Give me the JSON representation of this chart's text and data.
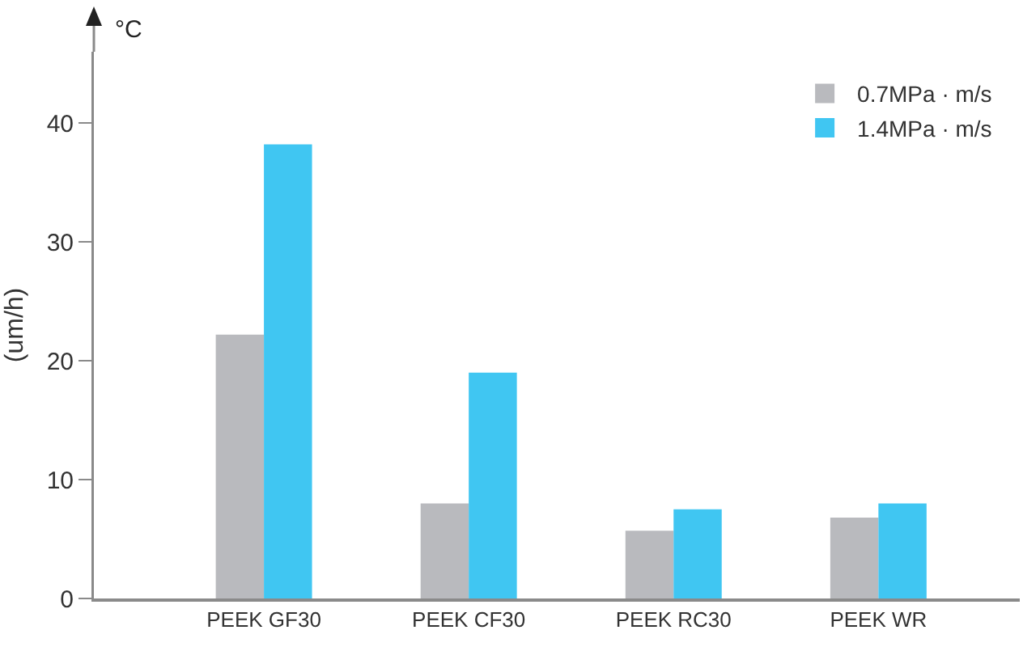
{
  "chart_data": {
    "type": "bar",
    "ylabel": "(um/h)",
    "annotations": [
      "°C"
    ],
    "categories": [
      "PEEK GF30",
      "PEEK CF30",
      "PEEK RC30",
      "PEEK WR"
    ],
    "series": [
      {
        "name": "0.7MPa · m/s",
        "color": "#b9babe",
        "values": [
          22.2,
          8,
          5.7,
          6.8
        ]
      },
      {
        "name": "1.4MPa · m/s",
        "color": "#40c6f2",
        "values": [
          38.2,
          19,
          7.5,
          8
        ]
      }
    ],
    "ylim": [
      0,
      46
    ],
    "yticks": [
      0,
      10,
      20,
      30,
      40
    ],
    "grid": false,
    "legend": "top right"
  }
}
